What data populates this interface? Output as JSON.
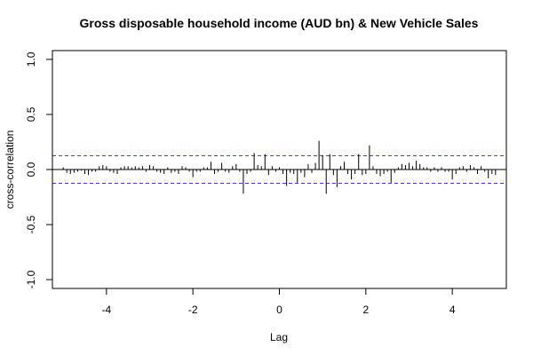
{
  "chart_data": {
    "type": "bar",
    "title": "Gross disposable household income (AUD bn) & New Vehicle Sales",
    "xlabel": "Lag",
    "ylabel": "cross-correlation",
    "xlim": [
      -5.25,
      5.25
    ],
    "ylim": [
      -1.08,
      1.08
    ],
    "x_ticks": [
      -4,
      -2,
      0,
      2,
      4
    ],
    "y_ticks": [
      -1.0,
      -0.5,
      0.0,
      0.5,
      1.0
    ],
    "x_tick_labels": [
      "-4",
      "-2",
      "0",
      "2",
      "4"
    ],
    "y_tick_labels": [
      "-1.0",
      "-0.5",
      "0.0",
      "0.5",
      "1.0"
    ],
    "confidence_limit": 0.125,
    "colors": {
      "bars": "#000000",
      "confidence": "#3a3aff",
      "zero_line": "#000000"
    },
    "lags": [
      -5.0,
      -4.9167,
      -4.8333,
      -4.75,
      -4.6667,
      -4.5833,
      -4.5,
      -4.4167,
      -4.3333,
      -4.25,
      -4.1667,
      -4.0833,
      -4.0,
      -3.9167,
      -3.8333,
      -3.75,
      -3.6667,
      -3.5833,
      -3.5,
      -3.4167,
      -3.3333,
      -3.25,
      -3.1667,
      -3.0833,
      -3.0,
      -2.9167,
      -2.8333,
      -2.75,
      -2.6667,
      -2.5833,
      -2.5,
      -2.4167,
      -2.3333,
      -2.25,
      -2.1667,
      -2.0833,
      -2.0,
      -1.9167,
      -1.8333,
      -1.75,
      -1.6667,
      -1.5833,
      -1.5,
      -1.4167,
      -1.3333,
      -1.25,
      -1.1667,
      -1.0833,
      -1.0,
      -0.9167,
      -0.8333,
      -0.75,
      -0.6667,
      -0.5833,
      -0.5,
      -0.4167,
      -0.3333,
      -0.25,
      -0.1667,
      -0.0833,
      0.0,
      0.0833,
      0.1667,
      0.25,
      0.3333,
      0.4167,
      0.5,
      0.5833,
      0.6667,
      0.75,
      0.8333,
      0.9167,
      1.0,
      1.0833,
      1.1667,
      1.25,
      1.3333,
      1.4167,
      1.5,
      1.5833,
      1.6667,
      1.75,
      1.8333,
      1.9167,
      2.0,
      2.0833,
      2.1667,
      2.25,
      2.3333,
      2.4167,
      2.5,
      2.5833,
      2.6667,
      2.75,
      2.8333,
      2.9167,
      3.0,
      3.0833,
      3.1667,
      3.25,
      3.3333,
      3.4167,
      3.5,
      3.5833,
      3.6667,
      3.75,
      3.8333,
      3.9167,
      4.0,
      4.0833,
      4.1667,
      4.25,
      4.3333,
      4.4167,
      4.5,
      4.5833,
      4.6667,
      4.75,
      4.8333,
      4.9167,
      5.0
    ],
    "values": [
      0.02,
      -0.03,
      -0.04,
      -0.03,
      -0.02,
      -0.01,
      -0.04,
      -0.05,
      -0.02,
      -0.02,
      0.03,
      0.04,
      0.03,
      -0.02,
      -0.03,
      -0.04,
      0.02,
      0.03,
      0.03,
      0.02,
      0.03,
      0.02,
      0.03,
      -0.02,
      0.04,
      0.03,
      -0.02,
      -0.03,
      -0.04,
      0.02,
      -0.03,
      -0.02,
      -0.04,
      0.03,
      0.02,
      -0.02,
      -0.07,
      -0.02,
      -0.02,
      0.02,
      0.02,
      0.07,
      -0.04,
      -0.02,
      0.06,
      -0.02,
      -0.03,
      0.03,
      0.05,
      -0.02,
      -0.22,
      -0.04,
      -0.02,
      0.15,
      0.04,
      0.03,
      0.14,
      -0.05,
      0.03,
      -0.02,
      0.02,
      -0.04,
      -0.15,
      -0.03,
      -0.04,
      -0.12,
      -0.03,
      -0.07,
      0.05,
      -0.03,
      0.06,
      0.26,
      0.13,
      -0.22,
      0.14,
      -0.05,
      -0.16,
      0.03,
      0.07,
      -0.04,
      -0.09,
      -0.04,
      0.14,
      -0.05,
      -0.04,
      0.22,
      0.03,
      -0.04,
      -0.06,
      -0.04,
      -0.02,
      -0.12,
      -0.03,
      0.02,
      0.05,
      0.04,
      0.06,
      0.03,
      0.08,
      0.05,
      0.02,
      0.02,
      -0.02,
      0.02,
      -0.02,
      0.02,
      -0.02,
      -0.02,
      -0.09,
      -0.04,
      0.02,
      0.03,
      -0.02,
      0.04,
      0.02,
      -0.04,
      0.03,
      -0.02,
      -0.08,
      -0.04,
      -0.05
    ]
  }
}
